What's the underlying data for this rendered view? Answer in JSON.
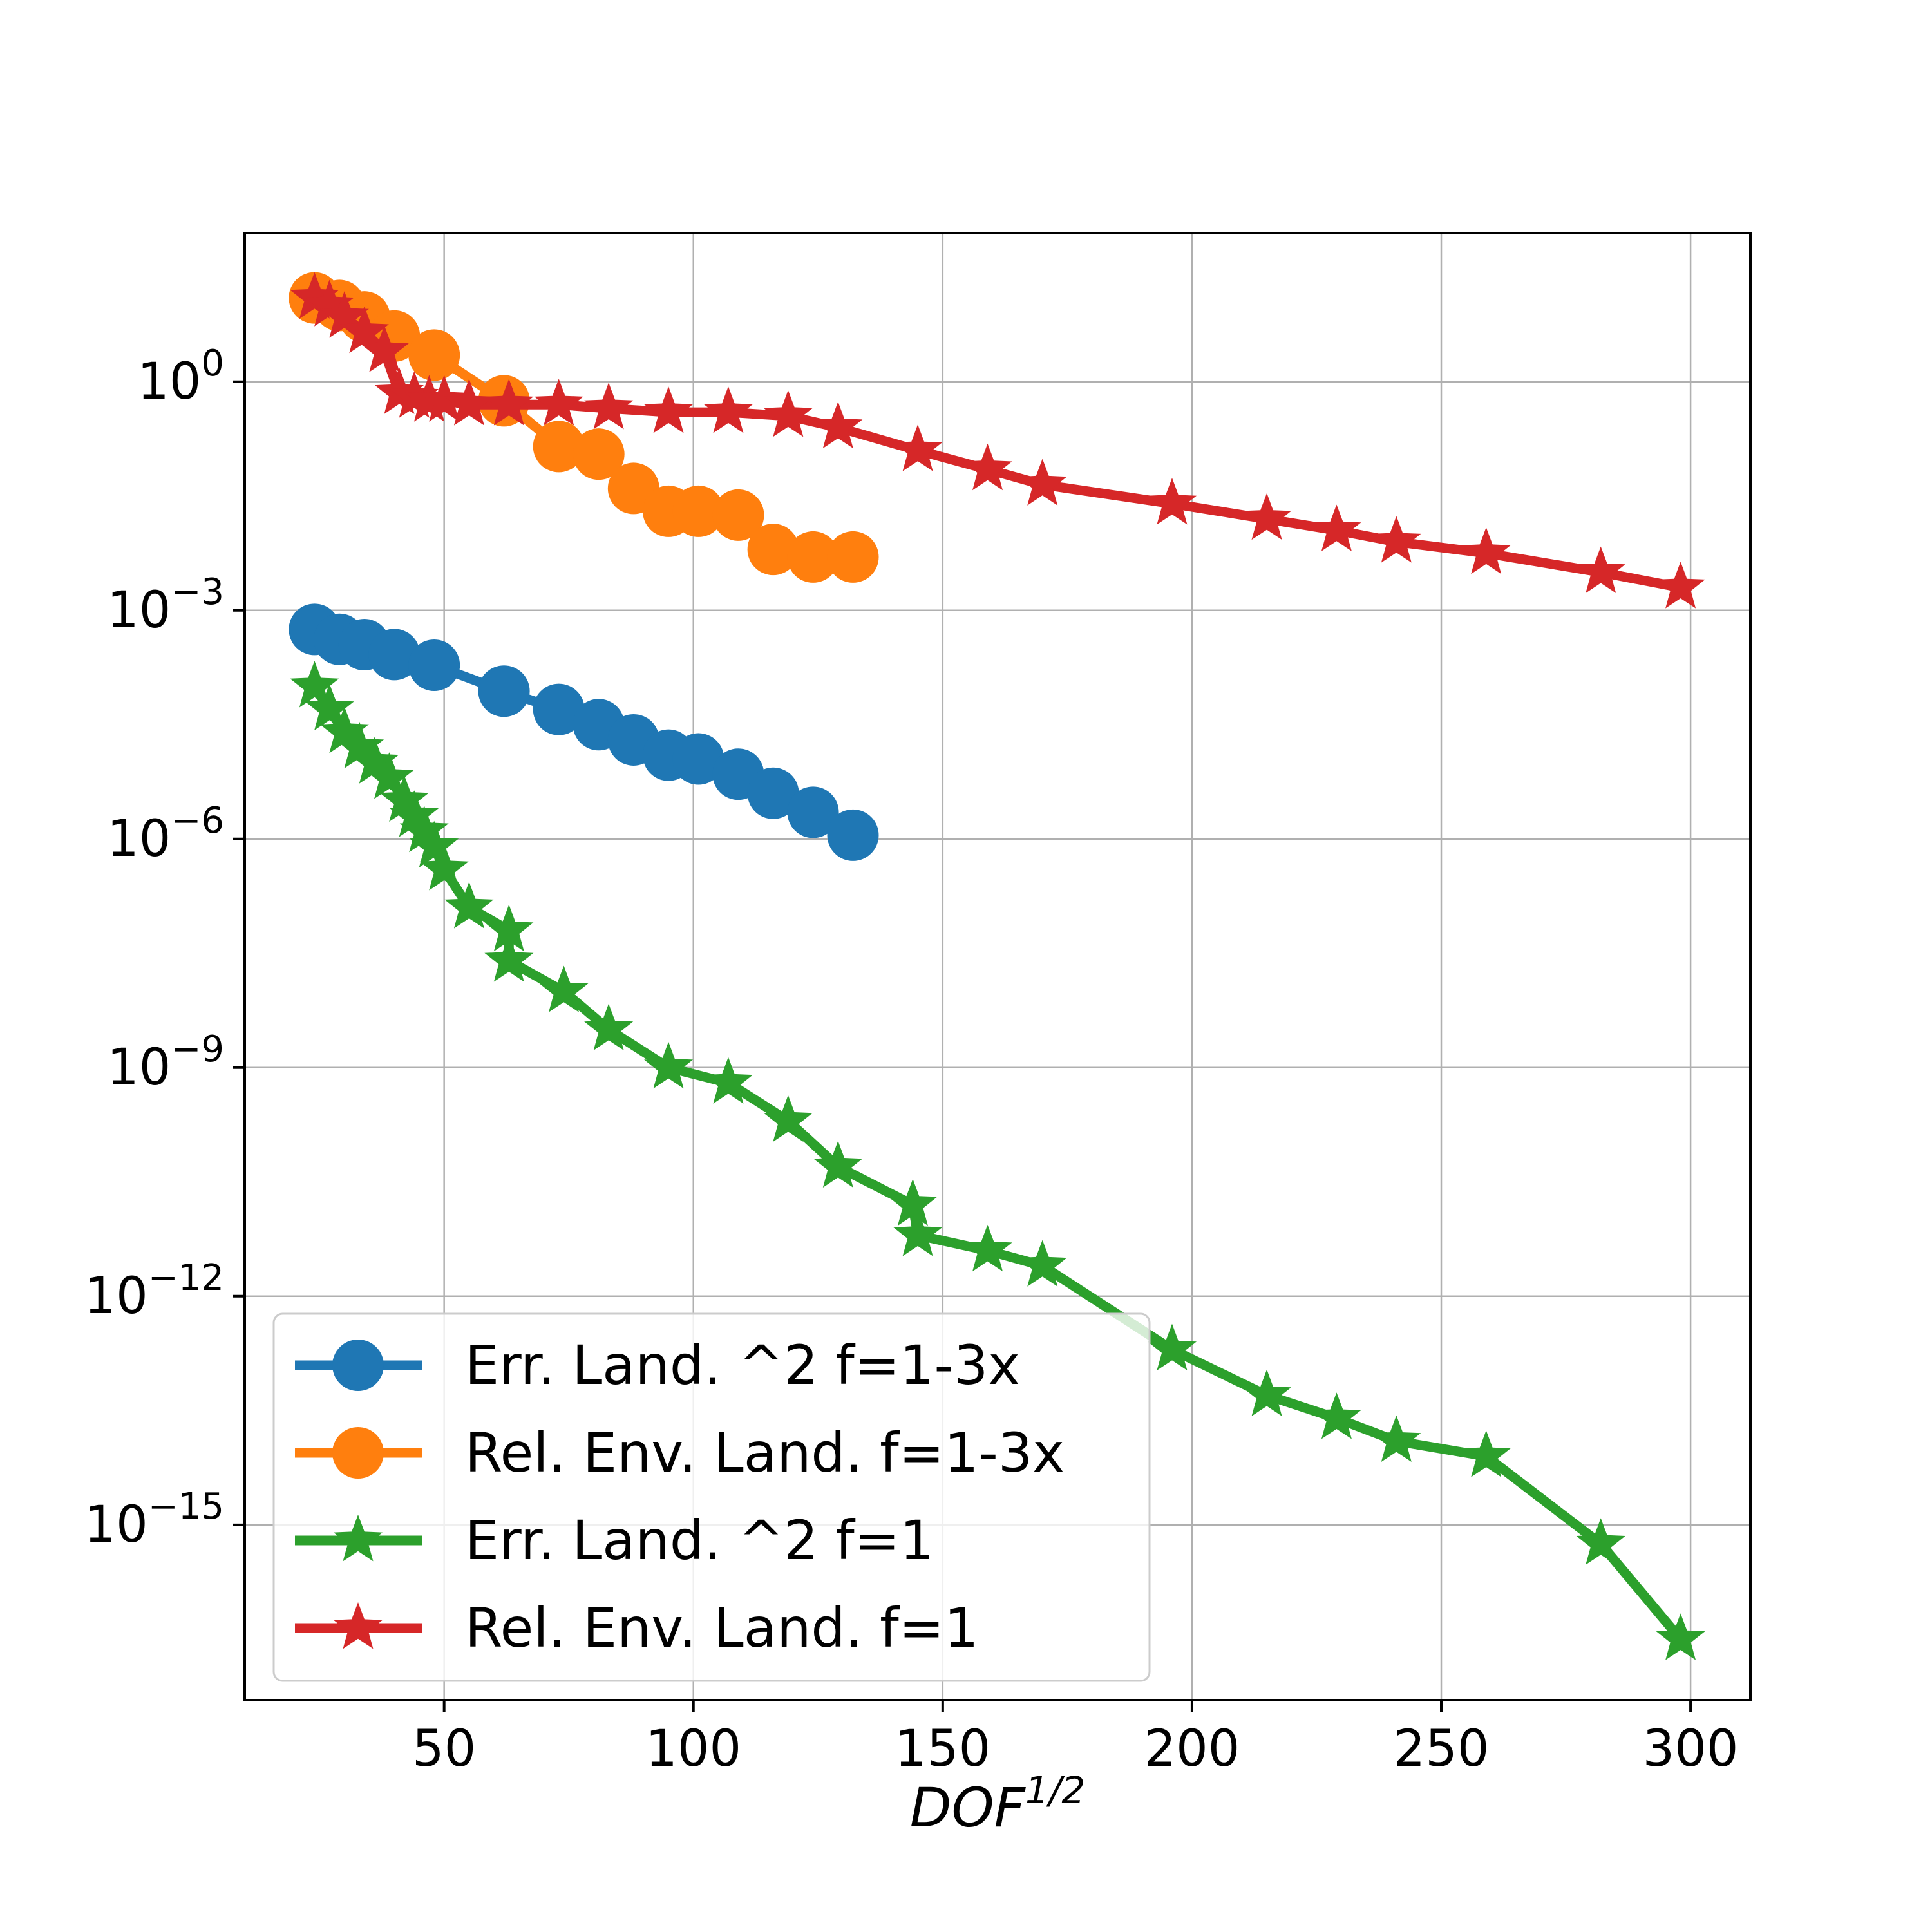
{
  "chart_data": {
    "type": "line",
    "xlabel": "DOF",
    "xlabel_sup": "1/2",
    "yscale": "log",
    "xlim": [
      10,
      312
    ],
    "ylim_exponents": [
      -17.3,
      1.95
    ],
    "x_ticks": [
      50,
      100,
      150,
      200,
      250,
      300
    ],
    "y_ticks": [
      {
        "exp": 0,
        "base": "10",
        "sup": "0"
      },
      {
        "exp": -3,
        "base": "10",
        "sup": "−3"
      },
      {
        "exp": -6,
        "base": "10",
        "sup": "−6"
      },
      {
        "exp": -9,
        "base": "10",
        "sup": "−9"
      },
      {
        "exp": -12,
        "base": "10",
        "sup": "−12"
      },
      {
        "exp": -15,
        "base": "10",
        "sup": "−15"
      }
    ],
    "grid": true,
    "legend_position": "lower-left",
    "series": [
      {
        "name": "Err. Land. ^2 f=1-3x",
        "color": "#1f77b4",
        "marker": "circle",
        "x": [
          24,
          29,
          34,
          40,
          48,
          62,
          73,
          81,
          88,
          95,
          101,
          109,
          116,
          124,
          132
        ],
        "y_exp": [
          -3.25,
          -3.38,
          -3.45,
          -3.58,
          -3.72,
          -4.06,
          -4.3,
          -4.5,
          -4.7,
          -4.9,
          -4.95,
          -5.15,
          -5.4,
          -5.65,
          -5.95
        ]
      },
      {
        "name": "Rel. Env. Land. f=1-3x",
        "color": "#ff7f0e",
        "marker": "circle",
        "x": [
          24,
          29,
          34,
          40,
          48,
          62,
          73,
          81,
          88,
          95,
          101,
          109,
          116,
          124,
          132
        ],
        "y_exp": [
          1.1,
          1.0,
          0.85,
          0.6,
          0.35,
          -0.25,
          -0.85,
          -0.95,
          -1.4,
          -1.7,
          -1.7,
          -1.75,
          -2.2,
          -2.3,
          -2.3
        ]
      },
      {
        "name": "Err. Land. ^2 f=1",
        "color": "#2ca02c",
        "marker": "star",
        "x": [
          24,
          27,
          30,
          33,
          36,
          39,
          42,
          44,
          46,
          48,
          50,
          55,
          63,
          63,
          74,
          83,
          95,
          107,
          119,
          129,
          144,
          145,
          159,
          170,
          196,
          215,
          229,
          241,
          259,
          282,
          298
        ],
        "y_exp": [
          -4.0,
          -4.3,
          -4.6,
          -4.8,
          -5.0,
          -5.2,
          -5.5,
          -5.7,
          -5.9,
          -6.1,
          -6.4,
          -6.9,
          -7.2,
          -7.6,
          -8.0,
          -8.5,
          -9.0,
          -9.2,
          -9.7,
          -10.3,
          -10.8,
          -11.2,
          -11.4,
          -11.6,
          -12.7,
          -13.3,
          -13.6,
          -13.9,
          -14.1,
          -15.25,
          -16.5
        ]
      },
      {
        "name": "Rel. Env. Land. f=1",
        "color": "#d62728",
        "marker": "star",
        "x": [
          24,
          27,
          30,
          34,
          38,
          41,
          44,
          47,
          50,
          55,
          63,
          73,
          83,
          95,
          107,
          119,
          129,
          145,
          159,
          170,
          196,
          215,
          229,
          241,
          259,
          282,
          298
        ],
        "y_exp": [
          1.1,
          1.0,
          0.85,
          0.65,
          0.4,
          -0.15,
          -0.2,
          -0.25,
          -0.25,
          -0.3,
          -0.3,
          -0.3,
          -0.35,
          -0.4,
          -0.4,
          -0.45,
          -0.6,
          -0.9,
          -1.15,
          -1.35,
          -1.6,
          -1.8,
          -1.95,
          -2.1,
          -2.25,
          -2.5,
          -2.7
        ]
      }
    ]
  }
}
